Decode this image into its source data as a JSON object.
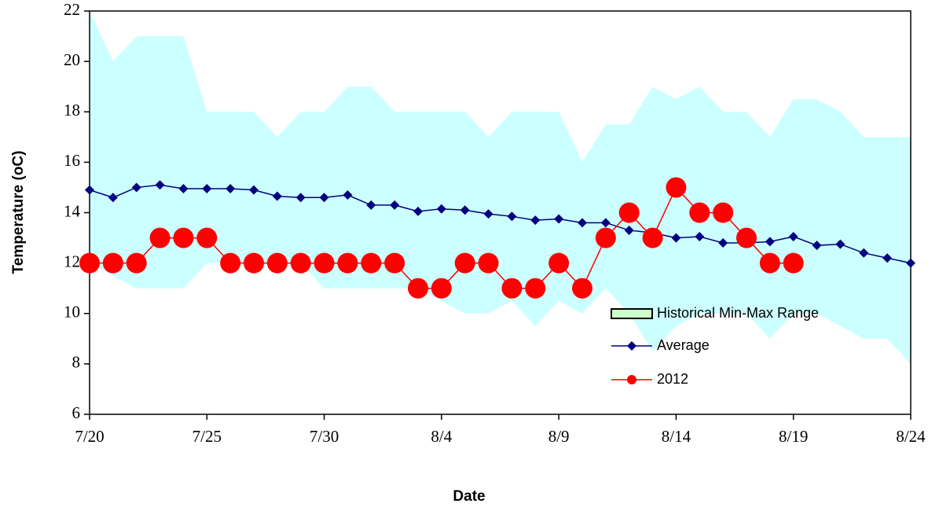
{
  "chart_data": {
    "type": "line",
    "x_label": "Date",
    "y_label": "Temperature  (oC)",
    "categories": [
      "7/20",
      null,
      null,
      null,
      null,
      "7/25",
      null,
      null,
      null,
      null,
      "7/30",
      null,
      null,
      null,
      null,
      "8/4",
      null,
      null,
      null,
      null,
      "8/9",
      null,
      null,
      null,
      null,
      "8/14",
      null,
      null,
      null,
      null,
      "8/19",
      null,
      null,
      null,
      null,
      "8/24"
    ],
    "ylim": [
      6,
      22
    ],
    "yticks": [
      6,
      8,
      10,
      12,
      14,
      16,
      18,
      20,
      22
    ],
    "grid": false,
    "series": [
      {
        "name": "Historical Min-Max Range",
        "color": "#ccffff",
        "legend_color": "#ccffcc",
        "high": [
          22,
          20,
          21,
          21,
          21,
          18,
          18,
          18,
          17,
          18,
          18,
          19,
          19,
          18,
          18,
          18,
          18,
          17,
          18,
          18,
          18,
          16,
          17.5,
          17.5,
          19,
          18.5,
          19,
          18,
          18,
          17,
          18.5,
          18.5,
          18,
          17,
          17,
          17
        ],
        "low": [
          12,
          11.5,
          11,
          11,
          11,
          12,
          12,
          12,
          12,
          12,
          11,
          11,
          11,
          11,
          11,
          10.5,
          10,
          10,
          10.5,
          9.5,
          10.5,
          10,
          11,
          10,
          8.5,
          9.5,
          10,
          10,
          10,
          9,
          10,
          10,
          9.5,
          9,
          9,
          8
        ]
      },
      {
        "name": "Average",
        "color": "#000080",
        "marker": "diamond",
        "values": [
          14.9,
          14.6,
          15.0,
          15.1,
          14.95,
          14.95,
          14.95,
          14.9,
          14.65,
          14.6,
          14.6,
          14.7,
          14.3,
          14.3,
          14.05,
          14.15,
          14.1,
          13.95,
          13.85,
          13.7,
          13.75,
          13.6,
          13.6,
          13.3,
          13.2,
          13.0,
          13.05,
          12.8,
          12.8,
          12.85,
          13.05,
          12.7,
          12.75,
          12.4,
          12.2,
          12.0
        ]
      },
      {
        "name": "2012",
        "color": "#ff0000",
        "marker": "circle",
        "values": [
          12,
          12,
          12,
          13,
          13,
          13,
          12,
          12,
          12,
          12,
          12,
          12,
          12,
          12,
          11,
          11,
          12,
          12,
          11,
          11,
          12,
          11,
          13,
          14,
          13,
          15,
          14,
          14,
          13,
          12,
          12,
          null,
          null,
          null,
          null,
          null
        ]
      }
    ]
  }
}
